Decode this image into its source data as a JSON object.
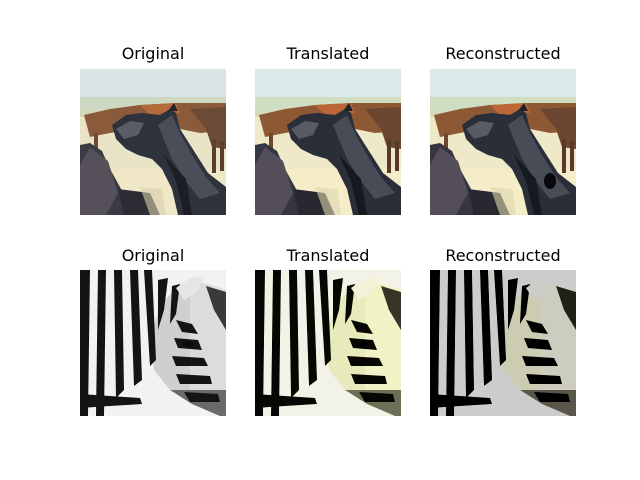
{
  "figure": {
    "rows": [
      {
        "subject": "horse",
        "panels": [
          {
            "title": "Original"
          },
          {
            "title": "Translated"
          },
          {
            "title": "Reconstructed"
          }
        ]
      },
      {
        "subject": "zebra",
        "panels": [
          {
            "title": "Original"
          },
          {
            "title": "Translated"
          },
          {
            "title": "Reconstructed"
          }
        ]
      }
    ]
  }
}
